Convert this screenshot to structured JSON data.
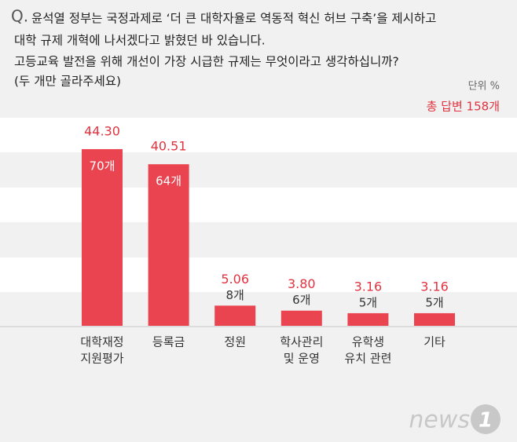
{
  "chart_data": {
    "type": "bar",
    "question_marker": "Q.",
    "question_lines": [
      "윤석열 정부는 국정과제로 ‘더 큰 대학자율로 역동적 혁신 허브 구축’을 제시하고",
      "대학 규제 개혁에 나서겠다고 밝혔던 바 있습니다.",
      "고등교육 발전을 위해 개선이 가장 시급한 규제는 무엇이라고 생각하십니까?",
      "(두 개만 골라주세요)"
    ],
    "unit": "단위 %",
    "total": "총 답변 158개",
    "categories": [
      [
        "대학재정",
        "지원평가"
      ],
      [
        "등록금"
      ],
      [
        "정원"
      ],
      [
        "학사관리",
        "및 운영"
      ],
      [
        "유학생",
        "유치 관련"
      ],
      [
        "기타"
      ]
    ],
    "values": [
      44.3,
      40.51,
      5.06,
      3.8,
      3.16,
      3.16
    ],
    "value_labels": [
      "44.30",
      "40.51",
      "5.06",
      "3.80",
      "3.16",
      "3.16"
    ],
    "count_labels": [
      "70개",
      "64개",
      "8개",
      "6개",
      "5개",
      "5개"
    ],
    "color": "#e9444f",
    "label_color": "#e0333f",
    "logo": "news",
    "logo_mark": "1"
  }
}
